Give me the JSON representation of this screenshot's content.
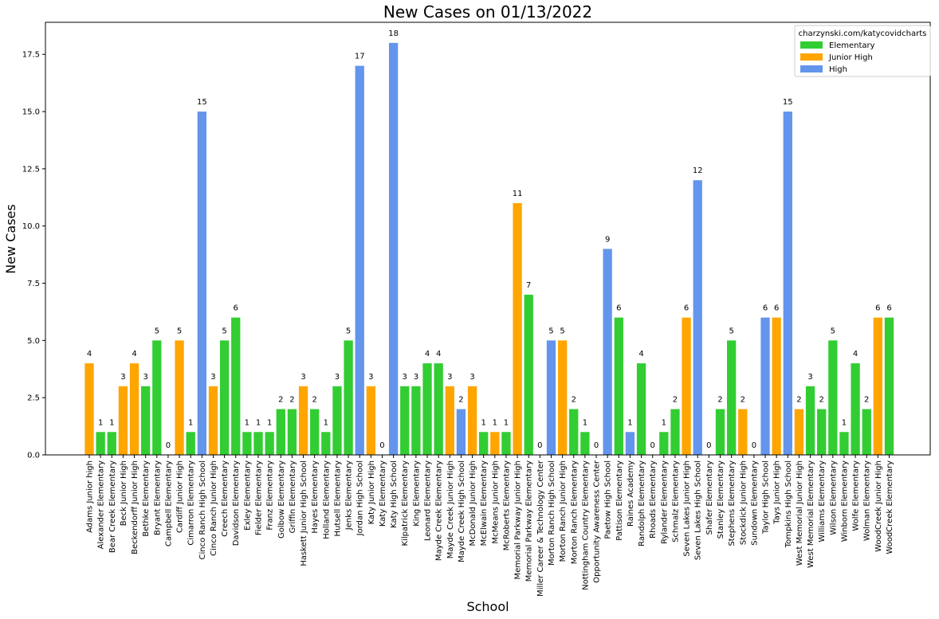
{
  "chart_data": {
    "type": "bar",
    "title": "New Cases on 01/13/2022",
    "xlabel": "School",
    "ylabel": "New Cases",
    "ylim": [
      0,
      18.9
    ],
    "yticks": [
      "0.0",
      "2.5",
      "5.0",
      "7.5",
      "10.0",
      "12.5",
      "15.0",
      "17.5"
    ],
    "grid": false,
    "legend": {
      "title": "charzynski.com/katycovidcharts",
      "position": "top-right",
      "entries": [
        {
          "key": "E",
          "label": "Elementary",
          "color": "#32cd32"
        },
        {
          "key": "J",
          "label": "Junior High",
          "color": "#ffa500"
        },
        {
          "key": "H",
          "label": "High",
          "color": "#6495ed"
        }
      ]
    },
    "categories": [
      "Adams Junior high",
      "Alexander Elementary",
      "Bear Creek Elementary",
      "Beck Junior High",
      "Beckendorff Junior High",
      "Bethke Elementary",
      "Bryant Elementary",
      "Campbell Elementary",
      "Cardiff Junior High",
      "Cimarron Elementary",
      "Cinco Ranch High School",
      "Cinco Ranch Junior High",
      "Creech Elementary",
      "Davidson Elementary",
      "Exley Elementary",
      "Fielder Elementary",
      "Franz Elementary",
      "Golbow Elementary",
      "Griffin Elementary",
      "Haskett Junior High School",
      "Hayes Elementary",
      "Holland Elementary",
      "Hutsell Elementary",
      "Jenks Elementary",
      "Jordan High School",
      "Katy Junior High",
      "Katy Elementary",
      "Katy High School",
      "Kilpatrick Elementary",
      "King Elementary",
      "Leonard Elementary",
      "Mayde Creek Elementary",
      "Mayde Creek Junior High",
      "Mayde Creek High School",
      "McDonald Junior High",
      "McElwain Elementary",
      "McMeans Junior High",
      "McRoberts Elementary",
      "Memorial Parkway Junior High",
      "Memorial Parkway Elementary",
      "Miller Career & Technology Center",
      "Morton Ranch High School",
      "Morton Ranch Junior High",
      "Morton Ranch Elementary",
      "Nottingham Country Elementary",
      "Opportunity Awareness Center",
      "Paetow High School",
      "Pattison Elementary",
      "Raines Academy",
      "Randolph Elementary",
      "Rhoads Elementary",
      "Rylander Elementary",
      "Schmalz Elementary",
      "Seven Lakes Junior High",
      "Seven Lakes High School",
      "Shafer Elementary",
      "Stanley Elementary",
      "Stephens Elementary",
      "Stockdick Junior High",
      "Sundown Elementary",
      "Taylor High School",
      "Tays Junior High",
      "Tompkins High School",
      "West Memorial Junior High",
      "West Memorial Elementary",
      "Williams Elementary",
      "Wilson Elementary",
      "Winborn Elementary",
      "Wolfe Elementary",
      "Wolman Elementary",
      "WoodCreek Junior High",
      "WoodCreek Elementary"
    ],
    "values": [
      4,
      1,
      1,
      3,
      4,
      3,
      5,
      0,
      5,
      1,
      15,
      3,
      5,
      6,
      1,
      1,
      1,
      2,
      2,
      3,
      2,
      1,
      3,
      5,
      17,
      3,
      0,
      18,
      3,
      3,
      4,
      4,
      3,
      2,
      3,
      1,
      1,
      1,
      11,
      7,
      0,
      5,
      5,
      2,
      1,
      0,
      9,
      6,
      1,
      4,
      0,
      1,
      2,
      6,
      12,
      0,
      2,
      5,
      2,
      0,
      6,
      6,
      15,
      2,
      3,
      2,
      5,
      1,
      4,
      2,
      6,
      6
    ],
    "levels": [
      "J",
      "E",
      "E",
      "J",
      "J",
      "E",
      "E",
      "E",
      "J",
      "E",
      "H",
      "J",
      "E",
      "E",
      "E",
      "E",
      "E",
      "E",
      "E",
      "J",
      "E",
      "E",
      "E",
      "E",
      "H",
      "J",
      "E",
      "H",
      "E",
      "E",
      "E",
      "E",
      "J",
      "H",
      "J",
      "E",
      "J",
      "E",
      "J",
      "E",
      "H",
      "H",
      "J",
      "E",
      "E",
      "H",
      "H",
      "E",
      "H",
      "E",
      "E",
      "E",
      "E",
      "J",
      "H",
      "E",
      "E",
      "E",
      "J",
      "E",
      "H",
      "J",
      "H",
      "J",
      "E",
      "E",
      "E",
      "E",
      "E",
      "E",
      "J",
      "E"
    ]
  }
}
